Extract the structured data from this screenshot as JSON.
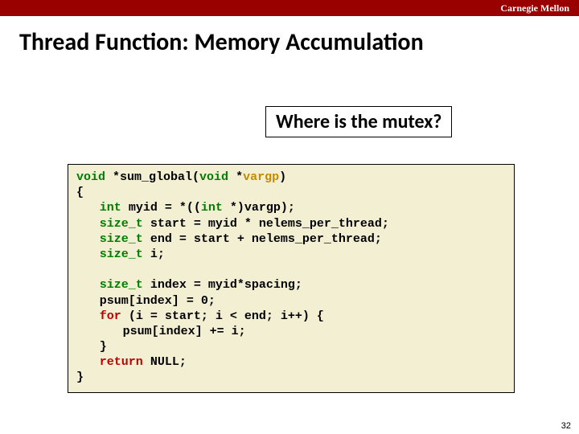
{
  "header": {
    "brand": "Carnegie Mellon",
    "bar_color": "#990000",
    "brand_text_color": "#ffffff"
  },
  "slide": {
    "title": "Thread Function: Memory Accumulation",
    "callout": "Where is the mutex?",
    "page_number": "32"
  },
  "code": {
    "background_color": "#f2efd3",
    "border_color": "#000000",
    "font_family": "Courier New",
    "font_size_pt": 12,
    "colors": {
      "type_keyword": "#007e00",
      "flow_keyword": "#bf0000",
      "parameter": "#c48a00",
      "default": "#000000"
    },
    "tokens": {
      "void1": "void",
      "star_fn": " *sum_global(",
      "void2": "void",
      "star_param_open": " *",
      "vargp": "vargp",
      "close_paren": ")",
      "lbrace_top": "{",
      "int1": "int",
      "myid_decl": " myid = *((",
      "int2": "int",
      "cast_tail": " *)vargp);",
      "size_t1": "size_t",
      "start_decl": " start = myid * nelems_per_thread;",
      "size_t2": "size_t",
      "end_decl": " end = start + nelems_per_thread;",
      "size_t3": "size_t",
      "i_decl": " i;",
      "size_t4": "size_t",
      "index_decl": " index = myid*spacing;",
      "psum_init": "psum[index] = 0;",
      "for_kw": "for",
      "for_head": " (i = start; i < end; i++) {",
      "psum_add": "psum[index] += i;",
      "rbrace_for": "}",
      "return_kw": "return",
      "null_tail": " NULL;",
      "rbrace_fn": "}"
    }
  }
}
